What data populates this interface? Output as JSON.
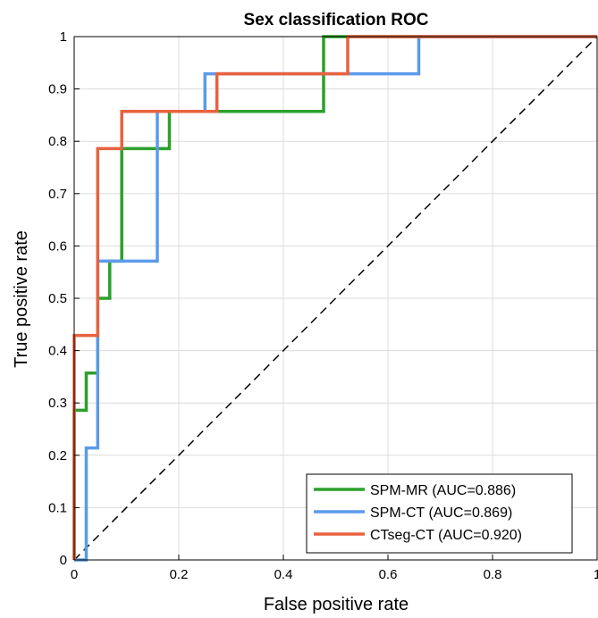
{
  "chart_data": {
    "type": "line",
    "title": "Sex classification ROC",
    "xlabel": "False positive rate",
    "ylabel": "True positive rate",
    "xlim": [
      0,
      1
    ],
    "ylim": [
      0,
      1
    ],
    "grid": true,
    "legend_position": "bottom-right",
    "xticks": [
      "0",
      "0.2",
      "0.4",
      "0.6",
      "0.8",
      "1"
    ],
    "yticks": [
      "0",
      "0.1",
      "0.2",
      "0.3",
      "0.4",
      "0.5",
      "0.6",
      "0.7",
      "0.8",
      "0.9",
      "1"
    ],
    "chance_line": {
      "x": [
        0,
        1
      ],
      "y": [
        0,
        1
      ],
      "style": "dashed",
      "color": "#000000"
    },
    "series": [
      {
        "name": "SPM-MR (AUC=0.886)",
        "color": "#2ca02c",
        "x": [
          0,
          0,
          0.023,
          0.023,
          0.045,
          0.045,
          0.068,
          0.068,
          0.091,
          0.091,
          0.182,
          0.182,
          0.477,
          0.477,
          1
        ],
        "y": [
          0,
          0.286,
          0.286,
          0.357,
          0.357,
          0.5,
          0.5,
          0.571,
          0.571,
          0.786,
          0.786,
          0.857,
          0.857,
          1,
          1
        ]
      },
      {
        "name": "SPM-CT (AUC=0.869)",
        "color": "#5b9bea",
        "x": [
          0,
          0.023,
          0.023,
          0.045,
          0.045,
          0.159,
          0.159,
          0.25,
          0.25,
          0.659,
          0.659,
          1
        ],
        "y": [
          0,
          0,
          0.214,
          0.214,
          0.571,
          0.571,
          0.857,
          0.857,
          0.929,
          0.929,
          1,
          1
        ]
      },
      {
        "name": "CTseg-CT (AUC=0.920)",
        "color": "#e8623f",
        "x": [
          0,
          0,
          0.045,
          0.045,
          0.091,
          0.091,
          0.273,
          0.273,
          0.523,
          0.523,
          1
        ],
        "y": [
          0,
          0.429,
          0.429,
          0.786,
          0.786,
          0.857,
          0.857,
          0.929,
          0.929,
          1,
          1
        ]
      }
    ]
  }
}
